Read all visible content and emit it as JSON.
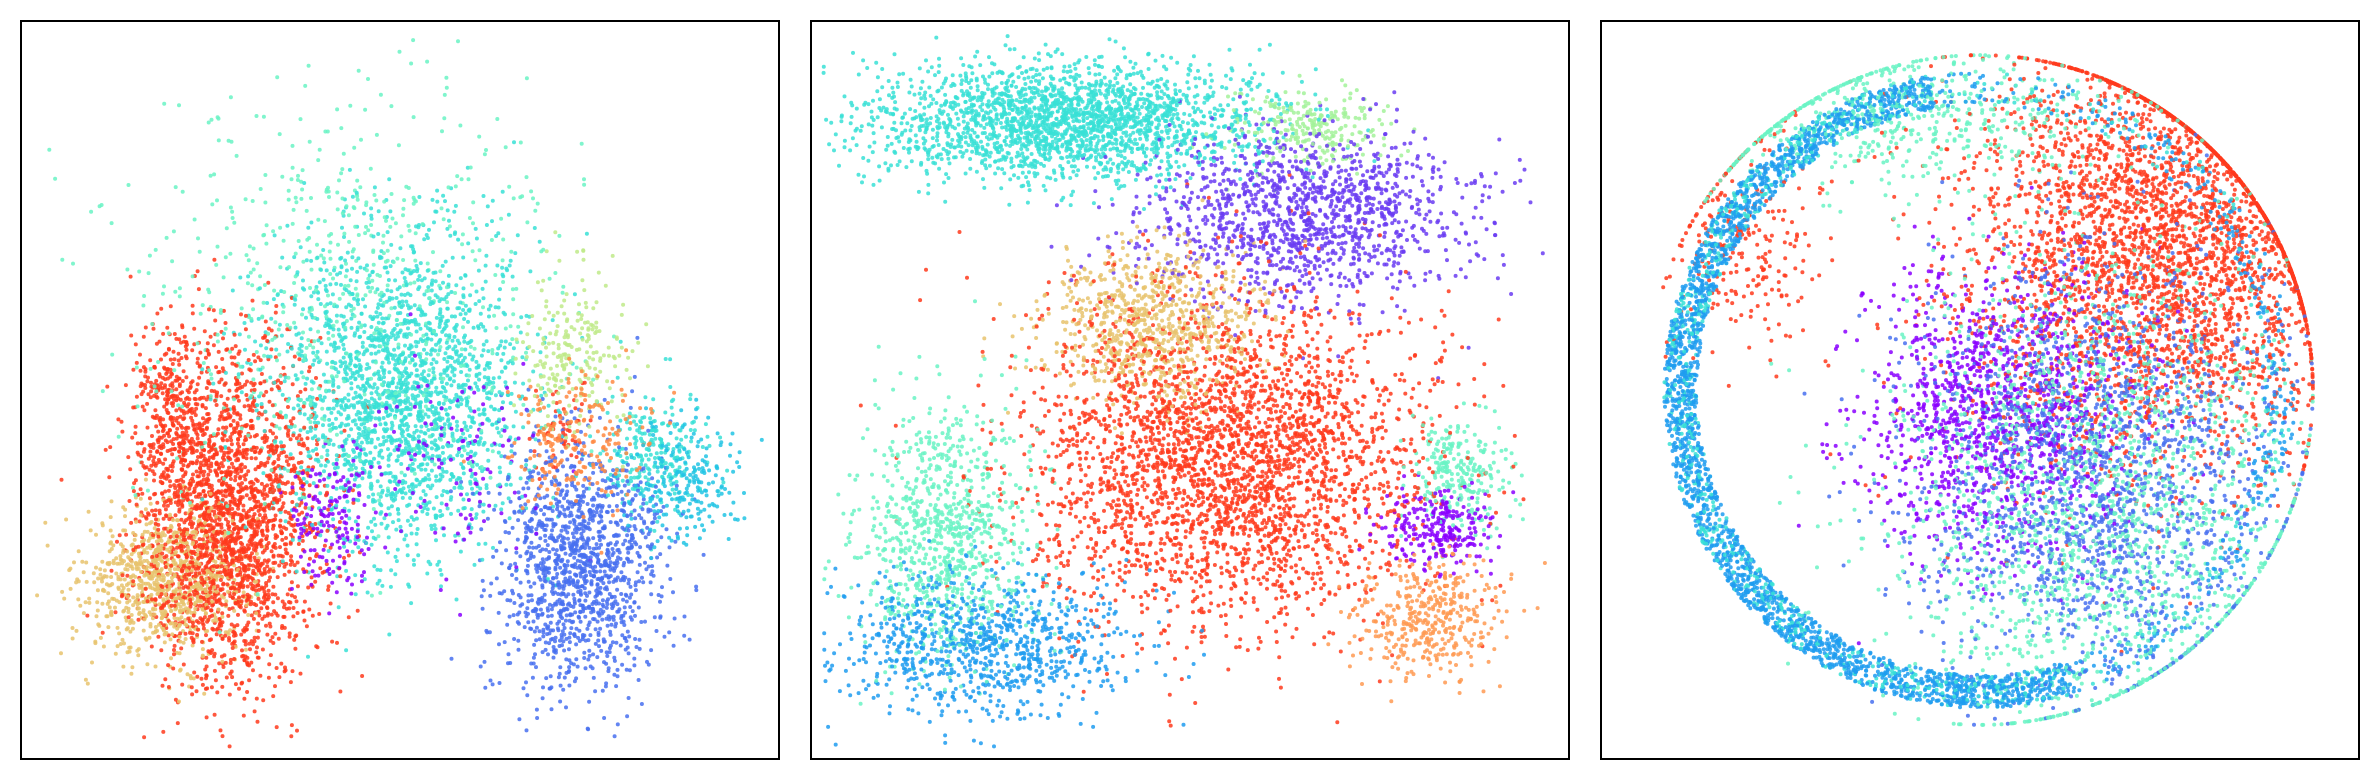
{
  "chart_data": [
    {
      "type": "scatter",
      "title": "",
      "xlabel": "",
      "ylabel": "",
      "axes_ticks": false,
      "grid": false,
      "legend": "none",
      "series": [
        {
          "color": "#e8c36d",
          "clusters": [
            {
              "center": [
                0.19,
                0.24
              ],
              "spread": [
                0.055,
                0.05
              ],
              "count": 900
            }
          ]
        },
        {
          "color": "#ff3a1c",
          "clusters": [
            {
              "center": [
                0.27,
                0.32
              ],
              "spread": [
                0.06,
                0.11
              ],
              "count": 2300
            },
            {
              "center": [
                0.2,
                0.48
              ],
              "spread": [
                0.03,
                0.06
              ],
              "count": 300
            },
            {
              "center": [
                0.72,
                0.44
              ],
              "spread": [
                0.02,
                0.03
              ],
              "count": 60
            }
          ]
        },
        {
          "color": "#38e0d6",
          "clusters": [
            {
              "center": [
                0.5,
                0.49
              ],
              "spread": [
                0.085,
                0.11
              ],
              "count": 2100
            },
            {
              "center": [
                0.84,
                0.41
              ],
              "spread": [
                0.035,
                0.04
              ],
              "count": 250
            }
          ]
        },
        {
          "color": "#6af3c4",
          "clusters": [
            {
              "center": [
                0.42,
                0.63
              ],
              "spread": [
                0.14,
                0.14
              ],
              "count": 650
            }
          ]
        },
        {
          "color": "#4870f0",
          "clusters": [
            {
              "center": [
                0.74,
                0.26
              ],
              "spread": [
                0.055,
                0.085
              ],
              "count": 1300
            }
          ]
        },
        {
          "color": "#8a00ff",
          "clusters": [
            {
              "center": [
                0.41,
                0.31
              ],
              "spread": [
                0.03,
                0.05
              ],
              "count": 160
            },
            {
              "center": [
                0.58,
                0.4
              ],
              "spread": [
                0.06,
                0.08
              ],
              "count": 120
            }
          ]
        },
        {
          "color": "#bfea8a",
          "clusters": [
            {
              "center": [
                0.73,
                0.55
              ],
              "spread": [
                0.04,
                0.06
              ],
              "count": 220
            }
          ]
        },
        {
          "color": "#22c4e4",
          "clusters": [
            {
              "center": [
                0.88,
                0.37
              ],
              "spread": [
                0.035,
                0.045
              ],
              "count": 220
            }
          ]
        },
        {
          "color": "#ff8a42",
          "clusters": [
            {
              "center": [
                0.74,
                0.43
              ],
              "spread": [
                0.05,
                0.05
              ],
              "count": 200
            }
          ]
        }
      ]
    },
    {
      "type": "scatter",
      "title": "",
      "xlabel": "",
      "ylabel": "",
      "axes_ticks": false,
      "grid": false,
      "legend": "none",
      "series": [
        {
          "color": "#38e0d6",
          "clusters": [
            {
              "center": [
                0.33,
                0.87
              ],
              "spread": [
                0.13,
                0.04
              ],
              "count": 2200
            }
          ]
        },
        {
          "color": "#a3f29a",
          "clusters": [
            {
              "center": [
                0.66,
                0.86
              ],
              "spread": [
                0.05,
                0.025
              ],
              "count": 250
            }
          ]
        },
        {
          "color": "#6a3cf2",
          "clusters": [
            {
              "center": [
                0.65,
                0.74
              ],
              "spread": [
                0.11,
                0.06
              ],
              "count": 1300
            }
          ]
        },
        {
          "color": "#e8c36d",
          "clusters": [
            {
              "center": [
                0.45,
                0.59
              ],
              "spread": [
                0.07,
                0.055
              ],
              "count": 800
            }
          ]
        },
        {
          "color": "#ff3a1c",
          "clusters": [
            {
              "center": [
                0.55,
                0.4
              ],
              "spread": [
                0.13,
                0.11
              ],
              "count": 3000
            }
          ]
        },
        {
          "color": "#6af3c4",
          "clusters": [
            {
              "center": [
                0.17,
                0.3
              ],
              "spread": [
                0.06,
                0.09
              ],
              "count": 900
            },
            {
              "center": [
                0.86,
                0.38
              ],
              "spread": [
                0.035,
                0.04
              ],
              "count": 250
            }
          ]
        },
        {
          "color": "#1e9cf0",
          "clusters": [
            {
              "center": [
                0.22,
                0.15
              ],
              "spread": [
                0.1,
                0.05
              ],
              "count": 900
            }
          ]
        },
        {
          "color": "#8a00ff",
          "clusters": [
            {
              "center": [
                0.83,
                0.31
              ],
              "spread": [
                0.035,
                0.03
              ],
              "count": 250
            }
          ]
        },
        {
          "color": "#ff9a52",
          "clusters": [
            {
              "center": [
                0.82,
                0.19
              ],
              "spread": [
                0.05,
                0.04
              ],
              "count": 400
            }
          ]
        }
      ]
    },
    {
      "type": "scatter",
      "title": "",
      "xlabel": "",
      "ylabel": "",
      "axes_ticks": false,
      "grid": false,
      "legend": "none",
      "series": [
        {
          "color": "#ff3a1c",
          "clusters": [
            {
              "center": [
                0.74,
                0.7
              ],
              "spread": [
                0.13,
                0.15
              ],
              "count": 3500
            },
            {
              "center": [
                0.18,
                0.7
              ],
              "spread": [
                0.05,
                0.08
              ],
              "count": 250
            }
          ]
        },
        {
          "color": "#8a00ff",
          "clusters": [
            {
              "center": [
                0.52,
                0.47
              ],
              "spread": [
                0.09,
                0.1
              ],
              "count": 1200
            }
          ]
        },
        {
          "color": "#4870f0",
          "clusters": [
            {
              "center": [
                0.66,
                0.4
              ],
              "spread": [
                0.12,
                0.15
              ],
              "count": 1800
            }
          ]
        },
        {
          "color": "#6af3c4",
          "clusters": [
            {
              "center": [
                0.66,
                0.35
              ],
              "spread": [
                0.14,
                0.17
              ],
              "count": 1800
            },
            {
              "center": [
                0.4,
                0.88
              ],
              "spread": [
                0.15,
                0.05
              ],
              "count": 600
            }
          ]
        },
        {
          "color": "#1e9cf0",
          "ring": true,
          "count": 2600
        },
        {
          "color": "#38e0d6",
          "ring": true,
          "count": 700
        }
      ]
    }
  ]
}
